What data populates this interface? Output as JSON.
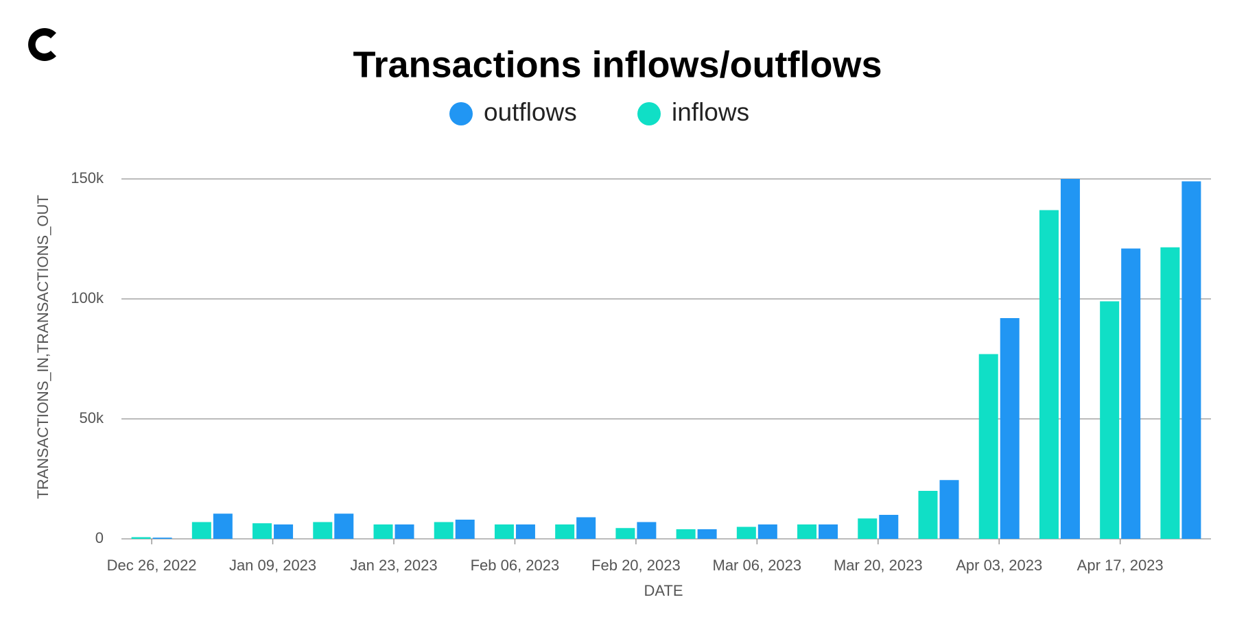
{
  "chart_data": {
    "type": "bar",
    "title": "Transactions inflows/outflows",
    "x_label": "DATE",
    "y_label": "TRANSACTIONS_IN,TRANSACTIONS_OUT",
    "categories": [
      "Dec 26, 2022",
      null,
      "Jan 09, 2023",
      null,
      "Jan 23, 2023",
      null,
      "Feb 06, 2023",
      null,
      "Feb 20, 2023",
      null,
      "Mar 06, 2023",
      null,
      "Mar 20, 2023",
      null,
      "Apr 03, 2023",
      null,
      "Apr 17, 2023",
      null
    ],
    "series": [
      {
        "name": "outflows",
        "color": "#2196f3",
        "values": [
          500,
          10500,
          6000,
          10500,
          6000,
          8000,
          6000,
          9000,
          7000,
          4000,
          6000,
          6000,
          10000,
          24500,
          92000,
          150000,
          121000,
          149000
        ]
      },
      {
        "name": "inflows",
        "color": "#10dfc6",
        "values": [
          700,
          7000,
          6500,
          7000,
          6000,
          7000,
          6000,
          6000,
          4500,
          4000,
          5000,
          6000,
          8500,
          20000,
          77000,
          137000,
          99000,
          121500
        ]
      }
    ],
    "ylim": [
      0,
      150000
    ],
    "yticks": [
      0,
      {
        "value": 50000,
        "label": "50k"
      },
      {
        "value": 100000,
        "label": "100k"
      },
      {
        "value": 150000,
        "label": "150k"
      }
    ],
    "grid": true
  }
}
